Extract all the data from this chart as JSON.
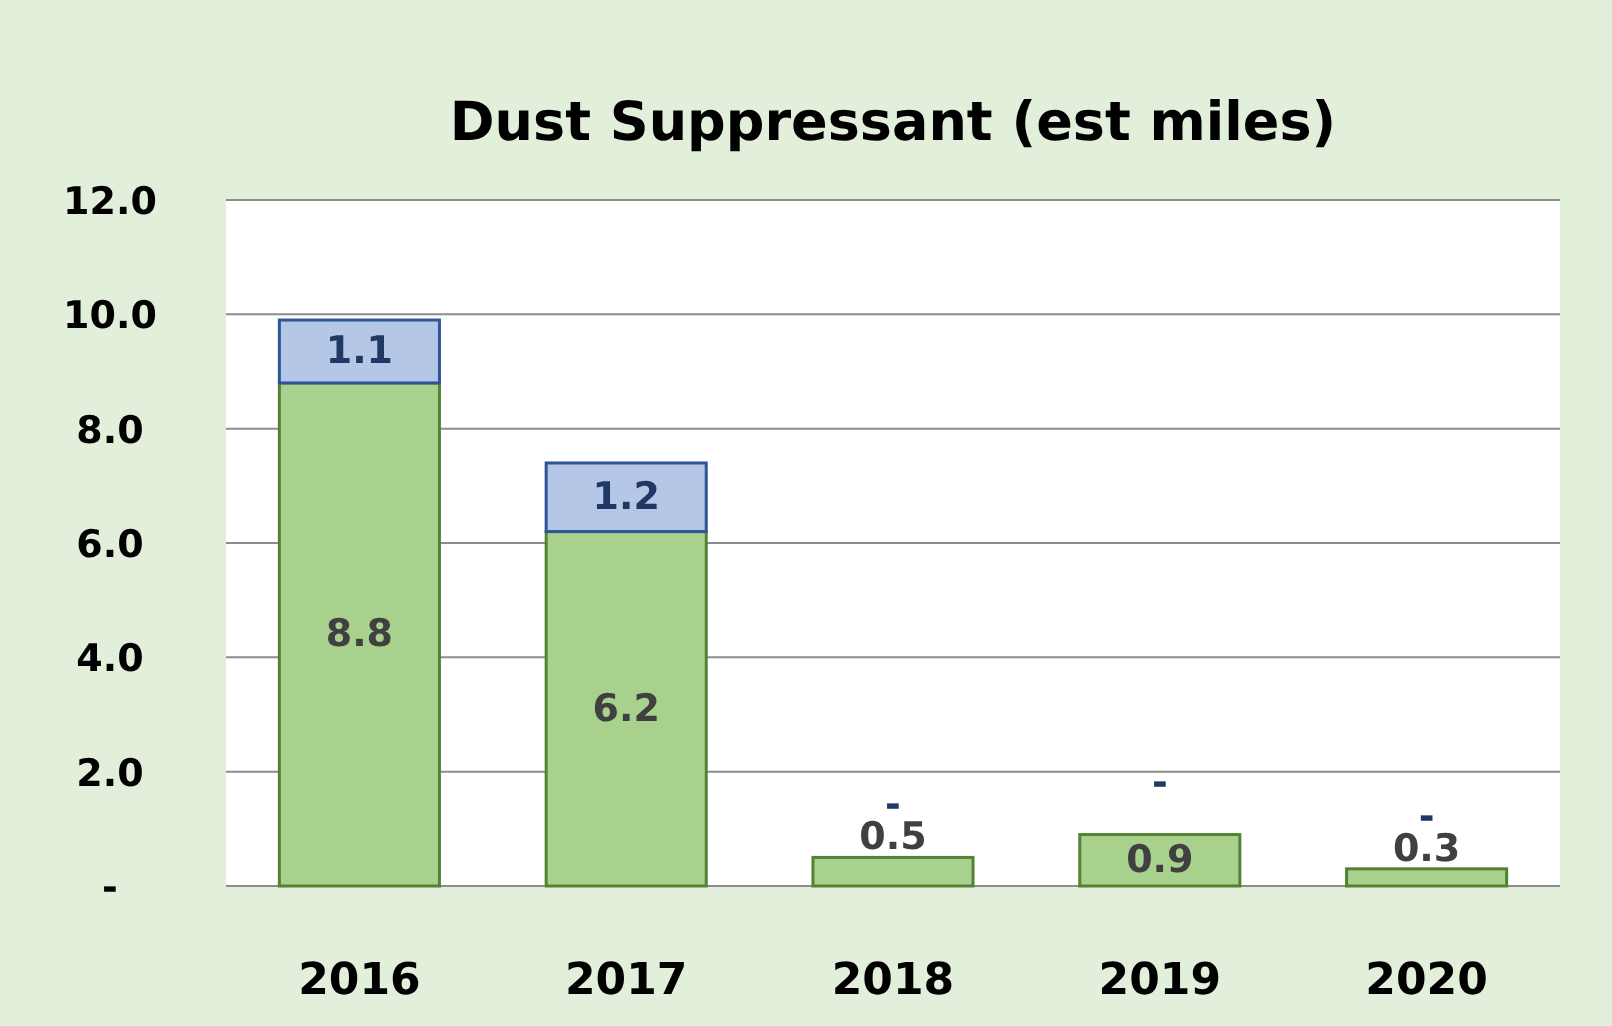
{
  "chart_data": {
    "type": "bar",
    "title": "Dust Suppressant (est miles)",
    "categories": [
      "2016",
      "2017",
      "2018",
      "2019",
      "2020"
    ],
    "stacked": true,
    "grid": "y",
    "series": [
      {
        "color": "#a9d18e",
        "values": [
          8.8,
          6.2,
          0.5,
          0.9,
          0.3
        ],
        "value_labels": [
          "8.8",
          "6.2",
          "0.5",
          "0.9",
          "0.3"
        ]
      },
      {
        "color": "#b4c7e7",
        "values": [
          1.1,
          1.2,
          0,
          0,
          0
        ],
        "value_labels": [
          "1.1",
          "1.2",
          "-",
          "-",
          "-"
        ]
      }
    ],
    "ylim": [
      0,
      12
    ],
    "yticks": [
      {
        "value": 0,
        "label": "-"
      },
      {
        "value": 2,
        "label": "2.0"
      },
      {
        "value": 4,
        "label": "4.0"
      },
      {
        "value": 6,
        "label": "6.0"
      },
      {
        "value": 8,
        "label": "8.0"
      },
      {
        "value": 10,
        "label": "10.0"
      },
      {
        "value": 12,
        "label": "12.0"
      }
    ]
  }
}
